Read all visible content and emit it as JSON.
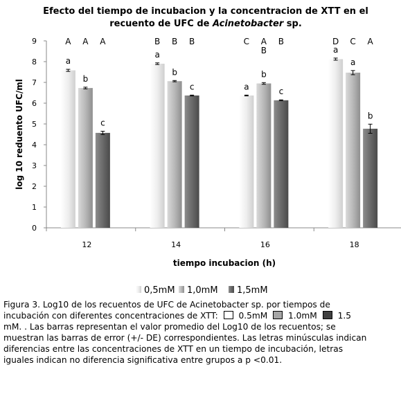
{
  "chart_data": {
    "type": "bar",
    "title": [
      "Efecto del tiempo de incubacion y la concentracion de XTT en el",
      "recuento de UFC de Acinetobacter sp."
    ],
    "title_italic_word": "Acinetobacter",
    "xlabel": "tiempo incubacion (h)",
    "ylabel": "log 10 reduento UFC/ml",
    "ylim": [
      0,
      9
    ],
    "yticks": [
      0,
      1,
      2,
      3,
      4,
      5,
      6,
      7,
      8,
      9
    ],
    "categories": [
      "12",
      "14",
      "16",
      "18"
    ],
    "series": [
      {
        "name": "0,5mM",
        "color": "#e6e6e6",
        "values": [
          7.58,
          7.9,
          6.37,
          8.12
        ],
        "errors": [
          0.05,
          0.04,
          0.02,
          0.05
        ],
        "lowercase_letters": [
          "a",
          "a",
          "a",
          "a"
        ]
      },
      {
        "name": "1,0mM",
        "color": "#b3b3b3",
        "values": [
          6.73,
          7.06,
          6.95,
          7.47
        ],
        "errors": [
          0.04,
          0.03,
          0.04,
          0.1
        ],
        "lowercase_letters": [
          "b",
          "b",
          "b",
          "a"
        ]
      },
      {
        "name": "1,5mM",
        "color": "#6b6b6b",
        "values": [
          4.57,
          6.37,
          6.14,
          4.77
        ],
        "errors": [
          0.08,
          0.02,
          0.02,
          0.22
        ],
        "lowercase_letters": [
          "c",
          "c",
          "c",
          "b"
        ]
      }
    ],
    "uppercase_letters": [
      [
        "A",
        "A",
        "A"
      ],
      [
        "B",
        "B",
        "B"
      ],
      [
        "C",
        "A\nB",
        "B"
      ],
      [
        "D",
        "C",
        "A"
      ]
    ],
    "grid": false,
    "legend_position": "bottom"
  },
  "caption": {
    "line1": "Figura 3. Log10 de los recuentos de UFC de Acinetobacter sp. por tiempos de",
    "line2_a": "incubación con diferentes concentraciones de XTT:",
    "line2_b": "0.5mM",
    "line2_c": "1.0mM",
    "line2_d": "1.5",
    "line3": "mM. . Las barras representan el valor promedio del Log10 de los recuentos; se",
    "line4": "muestran las barras de error (+/- DE) correspondientes. Las letras minúsculas indican",
    "line5": "diferencias entre las concentraciones de XTT en un tiempo de incubación, letras",
    "line6": "iguales indican no diferencia significativa entre grupos a p <0.01."
  }
}
